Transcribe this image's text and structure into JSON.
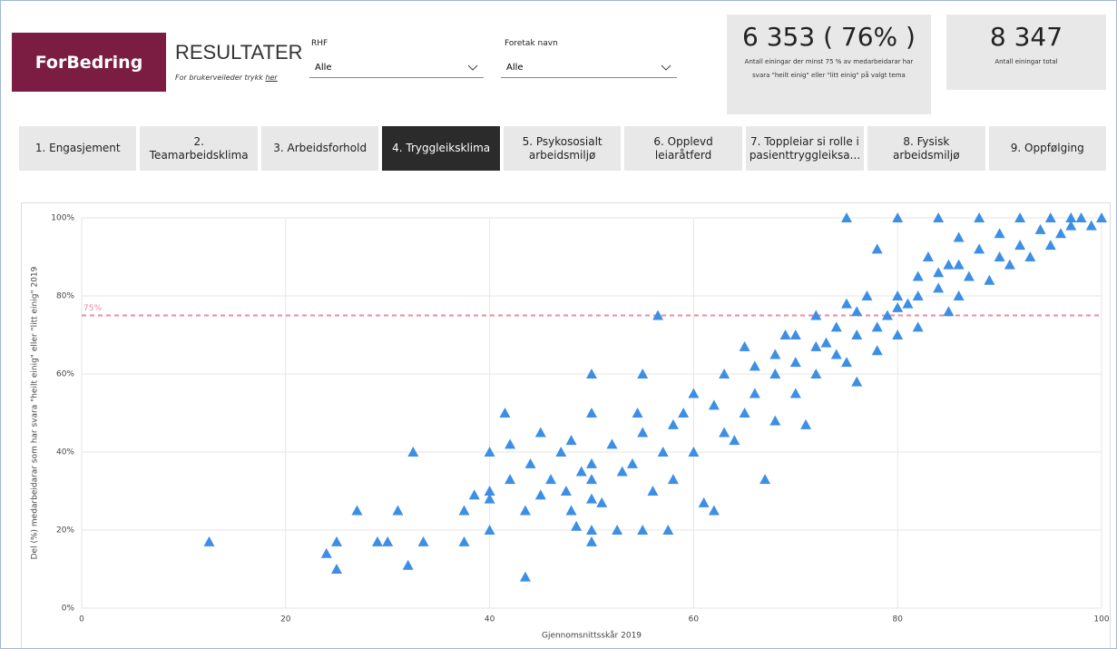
{
  "header": {
    "logo": "ForBedring",
    "title": "RESULTATER",
    "subtitle": "For brukerveileder trykk",
    "link": "her"
  },
  "filters": [
    {
      "label": "RHF",
      "value": "Alle"
    },
    {
      "label": "Foretak navn",
      "value": "Alle"
    }
  ],
  "kpis": [
    {
      "value": "6 353 ( 76% )",
      "description": "Antall einingar der minst 75 % av medarbeidarar har svara \"heilt einig\" eller \"litt einig\" på valgt tema"
    },
    {
      "value": "8 347",
      "description": "Antall einingar total"
    }
  ],
  "tabs": [
    "1. Engasjement",
    "2. Teamarbeidsklima",
    "3. Arbeidsforhold",
    "4. Tryggleiksklima",
    "5. Psykososialt arbeidsmiljø",
    "6. Opplevd leiaråtferd",
    "7. Toppleiar si rolle i pasienttryggleiksa...",
    "8. Fysisk arbeidsmiljø",
    "9. Oppfølging"
  ],
  "active_tab": 3,
  "chart_data": {
    "type": "scatter",
    "color": "#3d8fe6",
    "grid": true,
    "x_label": "Gjennomsnittsskår 2019",
    "y_label": "Del (%) medarbeidarar som har svara \"heilt einig\" eller \"litt einig\" 2019",
    "xlim": [
      0,
      100
    ],
    "xticks": [
      0,
      20,
      40,
      60,
      80,
      100
    ],
    "ylim": [
      0,
      100
    ],
    "yticks": [
      {
        "value": 0,
        "label": "0%"
      },
      {
        "value": 20,
        "label": "20%"
      },
      {
        "value": 40,
        "label": "40%"
      },
      {
        "value": 60,
        "label": "60%"
      },
      {
        "value": 80,
        "label": "80%"
      },
      {
        "value": 100,
        "label": "100%"
      }
    ],
    "reference_line": {
      "value": 75,
      "label": "75%",
      "color": "#f08aa0"
    },
    "x": [
      12.5,
      24,
      25,
      25,
      27,
      29,
      30,
      31,
      32,
      32.5,
      33.5,
      37.5,
      37.5,
      38.5,
      40,
      40,
      40,
      40,
      42,
      41.5,
      42,
      43.5,
      43.5,
      44,
      45,
      45,
      46,
      47,
      47.5,
      48,
      48,
      48.5,
      49,
      50,
      50,
      50,
      50,
      50,
      50,
      50,
      51,
      52,
      52.5,
      53,
      54,
      54.5,
      55,
      55,
      55,
      56,
      56.5,
      57,
      57.5,
      58,
      58,
      59,
      60,
      60,
      61,
      62,
      62,
      63,
      63,
      64,
      65,
      65,
      66,
      67,
      68,
      68,
      69,
      70,
      70,
      71,
      72,
      72,
      73,
      74,
      75,
      75,
      75,
      76,
      76,
      77,
      78,
      78,
      79,
      80,
      80,
      80,
      81,
      82,
      82,
      83,
      84,
      84,
      85,
      85,
      86,
      86,
      87,
      88,
      88,
      89,
      90,
      90,
      91,
      92,
      92,
      93,
      94,
      95,
      95,
      96,
      97,
      97,
      98,
      99,
      100,
      66,
      68,
      70,
      72,
      74,
      76,
      78,
      80,
      82,
      84,
      86
    ],
    "y": [
      17,
      14,
      10,
      17,
      25,
      17,
      17,
      25,
      11,
      40,
      17,
      17,
      25,
      29,
      20,
      30,
      40,
      28,
      33,
      50,
      42,
      8,
      25,
      37,
      29,
      45,
      33,
      40,
      30,
      25,
      43,
      21,
      35,
      17,
      20,
      28,
      33,
      37,
      50,
      60,
      27,
      42,
      20,
      35,
      37,
      50,
      20,
      45,
      60,
      30,
      75,
      40,
      20,
      47,
      33,
      50,
      55,
      40,
      27,
      25,
      52,
      60,
      45,
      43,
      50,
      67,
      55,
      33,
      60,
      48,
      70,
      55,
      63,
      47,
      60,
      75,
      68,
      65,
      63,
      100,
      78,
      58,
      70,
      80,
      66,
      92,
      75,
      70,
      80,
      100,
      78,
      85,
      72,
      90,
      82,
      100,
      76,
      88,
      95,
      80,
      85,
      92,
      100,
      84,
      90,
      96,
      88,
      100,
      93,
      90,
      97,
      100,
      93,
      96,
      98,
      100,
      100,
      98,
      100,
      62,
      65,
      70,
      67,
      72,
      76,
      72,
      77,
      80,
      86,
      88
    ]
  }
}
